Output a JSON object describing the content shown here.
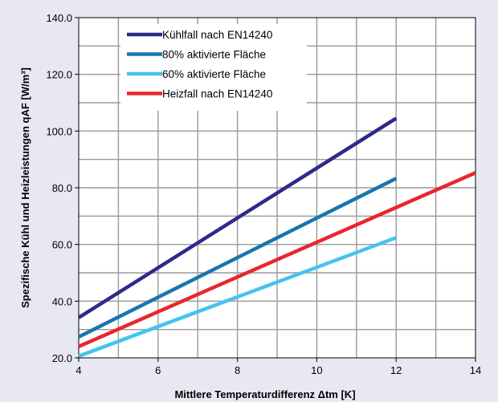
{
  "chart_data": {
    "type": "line",
    "title": "",
    "xlabel": "Mittlere Temperaturdifferenz Δtm [K]",
    "ylabel": "Spezifische Kühl und Heizleistungen qAF [W/m³]",
    "xlim": [
      4,
      14
    ],
    "ylim": [
      20,
      140
    ],
    "xticks": [
      4,
      6,
      8,
      10,
      12,
      14
    ],
    "yticks": [
      20,
      40,
      60,
      80,
      100,
      120,
      140
    ],
    "xtick_labels": [
      "4",
      "6",
      "8",
      "10",
      "12",
      "14"
    ],
    "ytick_labels": [
      "20.0",
      "40.0",
      "60.0",
      "80.0",
      "100.0",
      "120.0",
      "140.0"
    ],
    "grid": true,
    "legend_position": "top-left",
    "series": [
      {
        "name": "Kühlfall nach EN14240",
        "color": "#2e2a8a",
        "x": [
          4,
          12
        ],
        "y": [
          34.2,
          104.5
        ]
      },
      {
        "name": "80% aktivierte Fläche",
        "color": "#1a74b0",
        "x": [
          4,
          12
        ],
        "y": [
          27.4,
          83.3
        ]
      },
      {
        "name": "60% aktivierte Fläche",
        "color": "#45c3ef",
        "x": [
          4,
          12
        ],
        "y": [
          20.6,
          62.4
        ]
      },
      {
        "name": "Heizfall nach EN14240",
        "color": "#e8262d",
        "x": [
          4,
          14
        ],
        "y": [
          24.0,
          85.3
        ]
      }
    ]
  }
}
